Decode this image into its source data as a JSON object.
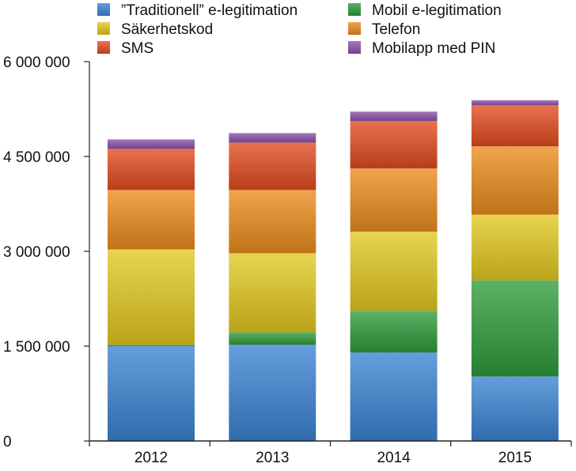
{
  "chart_data": {
    "type": "bar",
    "stacked": true,
    "title": "",
    "xlabel": "",
    "ylabel": "",
    "categories": [
      "2012",
      "2013",
      "2014",
      "2015"
    ],
    "ylim": [
      0,
      6000000
    ],
    "yticks": [
      0,
      1500000,
      3000000,
      4500000,
      6000000
    ],
    "ytick_labels": [
      "0",
      "1 500 000",
      "3 000 000",
      "4 500 000",
      "6 000 000"
    ],
    "legend_position": "top",
    "series": [
      {
        "name": "”Traditionell” e-legitimation",
        "color": "#3a83d2",
        "values": [
          1500000,
          1520000,
          1400000,
          1020000
        ]
      },
      {
        "name": "Mobil e-legitimation",
        "color": "#2e9b3a",
        "values": [
          20000,
          200000,
          660000,
          1520000
        ]
      },
      {
        "name": "Säkerhetskod",
        "color": "#e2c81e",
        "values": [
          1510000,
          1250000,
          1250000,
          1040000
        ]
      },
      {
        "name": "Telefon",
        "color": "#ea8c1c",
        "values": [
          940000,
          1000000,
          1000000,
          1080000
        ]
      },
      {
        "name": "SMS",
        "color": "#e24a1e",
        "values": [
          650000,
          750000,
          750000,
          650000
        ]
      },
      {
        "name": "Mobilapp med PIN",
        "color": "#8a52a8",
        "values": [
          150000,
          150000,
          150000,
          80000
        ]
      }
    ]
  }
}
